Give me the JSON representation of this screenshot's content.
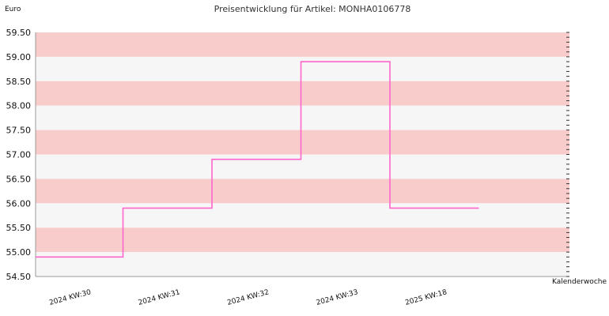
{
  "chart_data": {
    "type": "line",
    "style": "step",
    "title": "Preisentwicklung für Artikel: MONHA0106778",
    "ylabel": "Euro",
    "xlabel": "Kalenderwoche",
    "ylim": [
      54.5,
      59.5
    ],
    "yticks": [
      "54.50",
      "55.00",
      "55.50",
      "56.00",
      "56.50",
      "57.00",
      "57.50",
      "58.00",
      "58.50",
      "59.00",
      "59.50"
    ],
    "categories": [
      "2024 KW:30",
      "2024 KW:31",
      "2024 KW:32",
      "2024 KW:33",
      "2025 KW:18"
    ],
    "series": [
      {
        "values": [
          54.9,
          55.9,
          56.9,
          58.9,
          55.9
        ]
      }
    ],
    "grid": true,
    "band_colors": [
      "#f9cccc",
      "#f6f6f6"
    ],
    "line_color": "#ff66cc",
    "axis_color": "#999999"
  }
}
